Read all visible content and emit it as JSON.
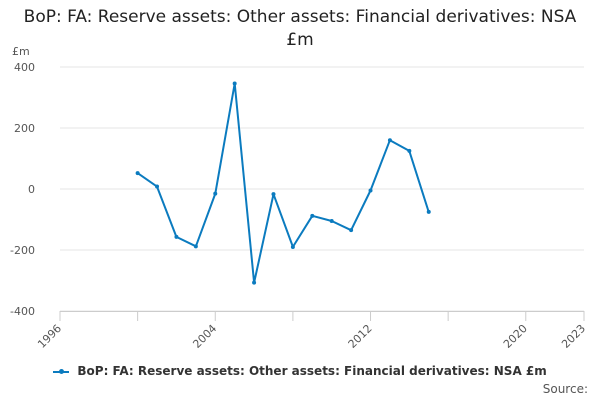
{
  "chart_data": {
    "type": "line",
    "title": "BoP: FA: Reserve assets: Other assets: Financial derivatives: NSA £m",
    "ylabel": "£m",
    "xlabel": "",
    "xlim": [
      1996,
      2023
    ],
    "ylim": [
      -400,
      400
    ],
    "x_ticks": [
      1996,
      2000,
      2004,
      2008,
      2012,
      2016,
      2020,
      2023
    ],
    "x_tick_labels": [
      "1996",
      "",
      "2004",
      "",
      "2012",
      "",
      "2020",
      "2023"
    ],
    "y_ticks": [
      -400,
      -200,
      0,
      200,
      400
    ],
    "y_tick_labels": [
      "-400",
      "-200",
      "0",
      "200",
      "400"
    ],
    "grid": "horizontal",
    "legend_position": "bottom",
    "series": [
      {
        "name": "BoP: FA: Reserve assets: Other assets: Financial derivatives: NSA £m",
        "color": "#0b7bbf",
        "x": [
          2000,
          2001,
          2002,
          2003,
          2004,
          2005,
          2006,
          2007,
          2008,
          2009,
          2010,
          2011,
          2012,
          2013,
          2014,
          2015
        ],
        "values": [
          52,
          8,
          -157,
          -188,
          -15,
          346,
          -307,
          -17,
          -190,
          -88,
          -105,
          -135,
          -5,
          160,
          125,
          -75
        ]
      }
    ]
  },
  "source_label": "Source:"
}
